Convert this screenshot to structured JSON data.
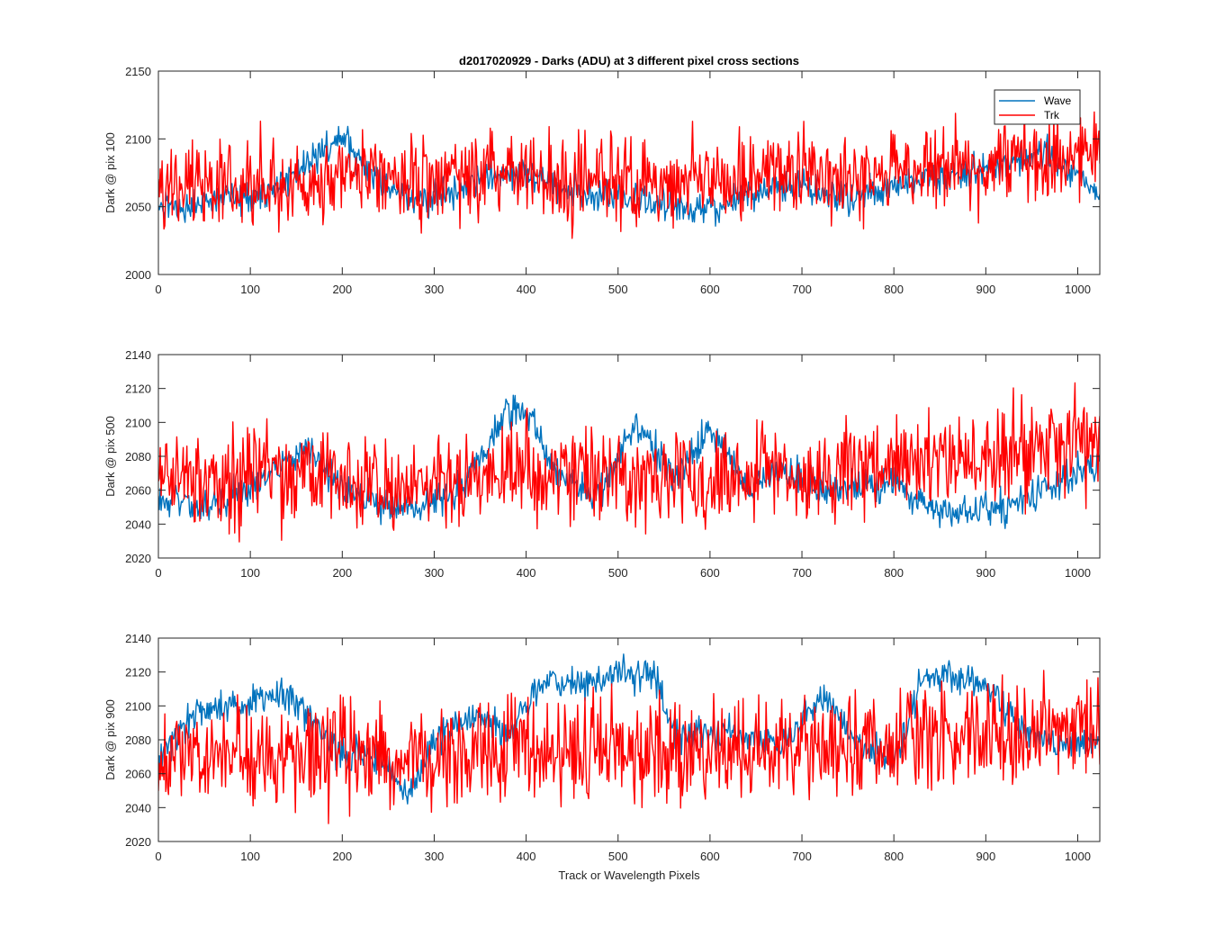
{
  "figure": {
    "title": "d2017020929 - Darks (ADU) at 3 different pixel cross sections",
    "xlabel": "Track or Wavelength Pixels"
  },
  "legend": {
    "placement": "top-right",
    "entries": [
      {
        "name": "Wave",
        "color": "#0072BD"
      },
      {
        "name": "Trk",
        "color": "#FF0000"
      }
    ]
  },
  "chart_data": [
    {
      "type": "line",
      "ylabel": "Dark @ pix 100",
      "xlim": [
        0,
        1024
      ],
      "ylim": [
        2000,
        2150
      ],
      "xticks": [
        0,
        100,
        200,
        300,
        400,
        500,
        600,
        700,
        800,
        900,
        1000
      ],
      "yticks": [
        2000,
        2050,
        2100,
        2150
      ],
      "x": [
        0,
        40,
        80,
        120,
        160,
        200,
        240,
        280,
        320,
        360,
        400,
        440,
        480,
        520,
        560,
        600,
        640,
        680,
        720,
        760,
        800,
        840,
        880,
        920,
        960,
        1000,
        1024
      ],
      "series": [
        {
          "name": "Wave",
          "color": "#0072BD",
          "noise": 6,
          "values": [
            2048,
            2052,
            2056,
            2062,
            2080,
            2100,
            2070,
            2055,
            2060,
            2072,
            2076,
            2064,
            2058,
            2054,
            2050,
            2046,
            2058,
            2066,
            2062,
            2058,
            2066,
            2072,
            2072,
            2082,
            2090,
            2075,
            2060
          ]
        },
        {
          "name": "Trk",
          "color": "#FF0000",
          "noise": 16,
          "values": [
            2064,
            2066,
            2068,
            2070,
            2068,
            2074,
            2070,
            2068,
            2072,
            2075,
            2074,
            2072,
            2070,
            2068,
            2070,
            2068,
            2072,
            2075,
            2074,
            2072,
            2075,
            2078,
            2080,
            2082,
            2085,
            2086,
            2088
          ]
        }
      ]
    },
    {
      "type": "line",
      "ylabel": "Dark @ pix 500",
      "xlim": [
        0,
        1024
      ],
      "ylim": [
        2020,
        2140
      ],
      "xticks": [
        0,
        100,
        200,
        300,
        400,
        500,
        600,
        700,
        800,
        900,
        1000
      ],
      "yticks": [
        2020,
        2040,
        2060,
        2080,
        2100,
        2120,
        2140
      ],
      "x": [
        0,
        40,
        80,
        120,
        160,
        200,
        240,
        280,
        320,
        360,
        380,
        400,
        440,
        480,
        520,
        560,
        600,
        640,
        680,
        720,
        760,
        800,
        840,
        880,
        920,
        960,
        1000,
        1024
      ],
      "series": [
        {
          "name": "Wave",
          "color": "#0072BD",
          "noise": 5,
          "values": [
            2058,
            2050,
            2055,
            2070,
            2085,
            2060,
            2052,
            2048,
            2058,
            2085,
            2106,
            2108,
            2065,
            2058,
            2100,
            2065,
            2098,
            2062,
            2072,
            2058,
            2060,
            2065,
            2048,
            2046,
            2050,
            2060,
            2072,
            2075
          ]
        },
        {
          "name": "Trk",
          "color": "#FF0000",
          "noise": 14,
          "values": [
            2070,
            2062,
            2064,
            2070,
            2072,
            2066,
            2064,
            2062,
            2066,
            2070,
            2072,
            2074,
            2070,
            2068,
            2070,
            2066,
            2072,
            2070,
            2072,
            2068,
            2074,
            2076,
            2078,
            2080,
            2082,
            2084,
            2088,
            2090
          ]
        }
      ]
    },
    {
      "type": "line",
      "ylabel": "Dark @ pix 900",
      "xlim": [
        0,
        1024
      ],
      "ylim": [
        2020,
        2140
      ],
      "xticks": [
        0,
        100,
        200,
        300,
        400,
        500,
        600,
        700,
        800,
        900,
        1000
      ],
      "yticks": [
        2020,
        2040,
        2060,
        2080,
        2100,
        2120,
        2140
      ],
      "x": [
        0,
        40,
        60,
        100,
        130,
        160,
        200,
        240,
        270,
        300,
        340,
        380,
        420,
        460,
        500,
        540,
        560,
        600,
        640,
        680,
        720,
        760,
        800,
        830,
        860,
        900,
        940,
        980,
        1024
      ],
      "series": [
        {
          "name": "Wave",
          "color": "#0072BD",
          "noise": 5,
          "values": [
            2068,
            2095,
            2098,
            2100,
            2108,
            2096,
            2070,
            2072,
            2048,
            2080,
            2095,
            2082,
            2115,
            2112,
            2118,
            2120,
            2082,
            2084,
            2082,
            2078,
            2106,
            2080,
            2066,
            2114,
            2118,
            2112,
            2086,
            2078,
            2080
          ]
        },
        {
          "name": "Trk",
          "color": "#FF0000",
          "noise": 15,
          "values": [
            2066,
            2068,
            2070,
            2072,
            2070,
            2068,
            2070,
            2068,
            2066,
            2070,
            2072,
            2074,
            2072,
            2070,
            2074,
            2072,
            2074,
            2072,
            2074,
            2076,
            2074,
            2076,
            2080,
            2082,
            2084,
            2085,
            2086,
            2088,
            2090
          ]
        }
      ]
    }
  ]
}
